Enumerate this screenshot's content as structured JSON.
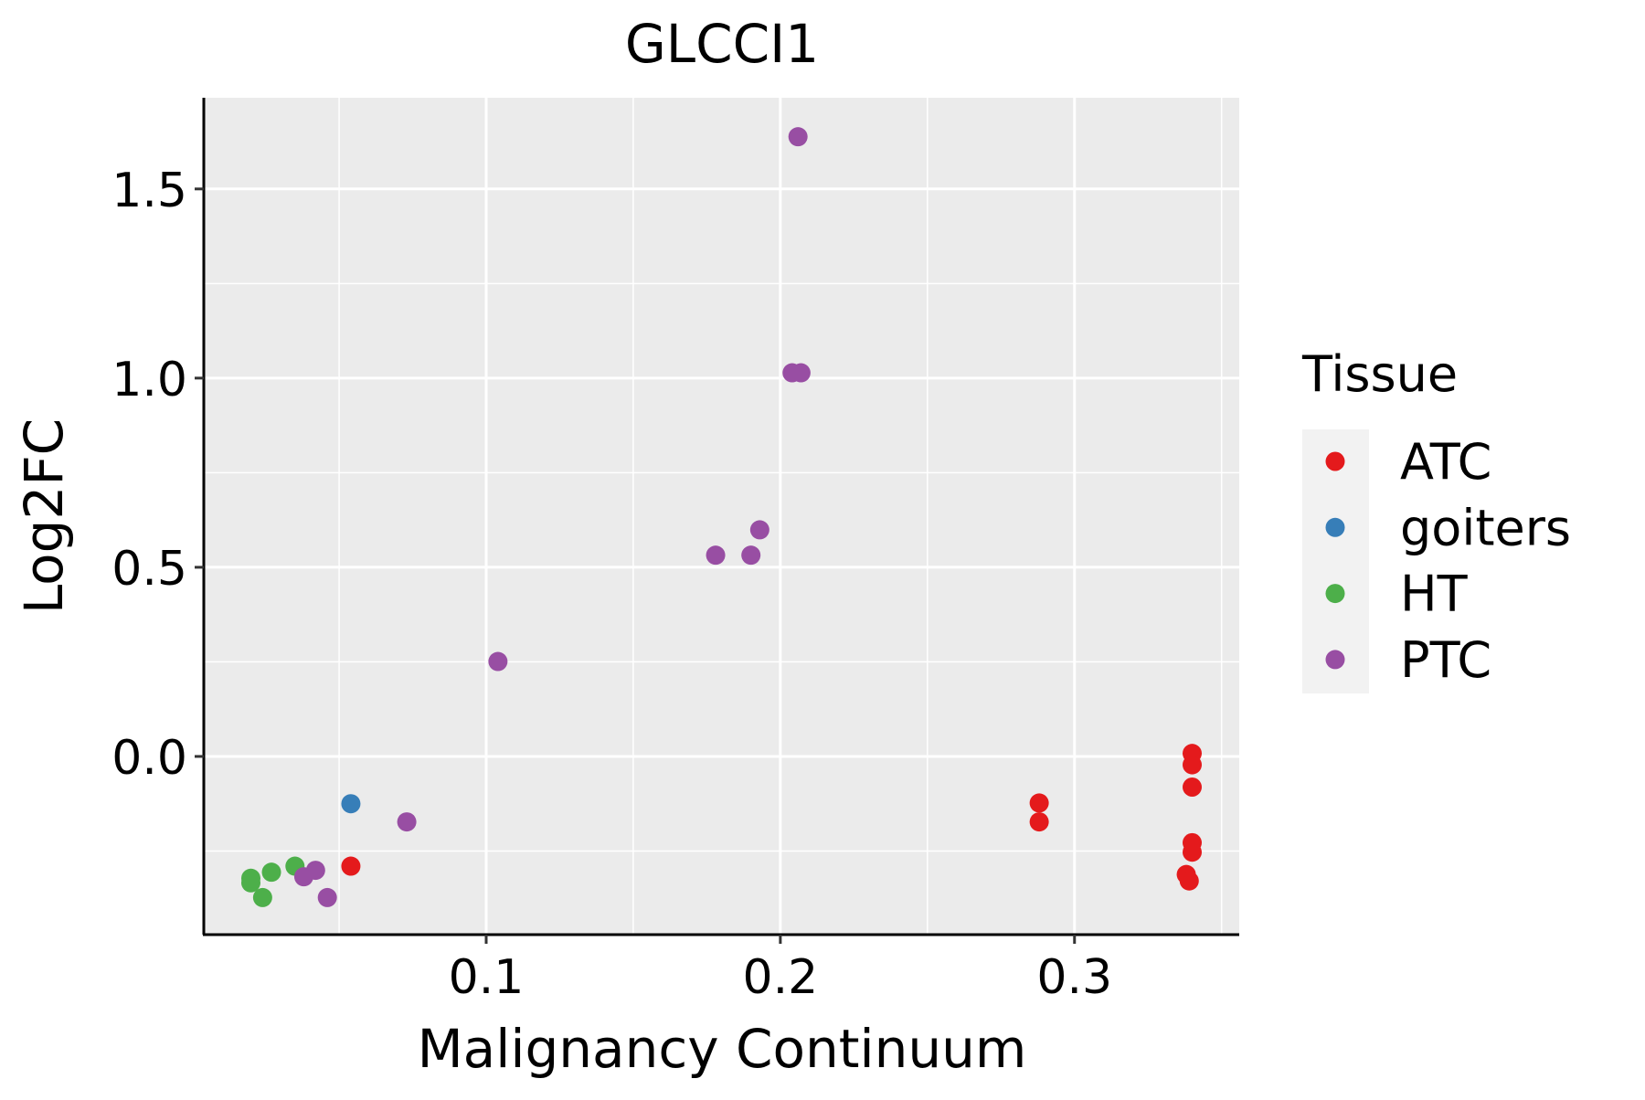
{
  "chart_data": {
    "type": "scatter",
    "title": "GLCCI1",
    "xlabel": "Malignancy Continuum",
    "ylabel": "Log2FC",
    "xlim": [
      0.004,
      0.356
    ],
    "ylim": [
      -0.471,
      1.741
    ],
    "x_ticks": [
      0.1,
      0.2,
      0.3
    ],
    "x_tick_labels": [
      "0.1",
      "0.2",
      "0.3"
    ],
    "x_minor": [
      0.05,
      0.15,
      0.25,
      0.35
    ],
    "y_ticks": [
      0.0,
      0.5,
      1.0,
      1.5
    ],
    "y_tick_labels": [
      "0.0",
      "0.5",
      "1.0",
      "1.5"
    ],
    "y_minor": [
      -0.25,
      0.25,
      0.75,
      1.25
    ],
    "grid": true,
    "legend": {
      "title": "Tissue",
      "placement": "right"
    },
    "series": [
      {
        "name": "ATC",
        "color": "#E41A1C",
        "points": [
          [
            0.054,
            -0.29
          ],
          [
            0.288,
            -0.123
          ],
          [
            0.288,
            -0.173
          ],
          [
            0.34,
            0.008
          ],
          [
            0.34,
            -0.022
          ],
          [
            0.34,
            -0.081
          ],
          [
            0.34,
            -0.228
          ],
          [
            0.34,
            -0.253
          ],
          [
            0.338,
            -0.312
          ],
          [
            0.339,
            -0.329
          ]
        ]
      },
      {
        "name": "goiters",
        "color": "#377EB8",
        "points": [
          [
            0.054,
            -0.125
          ]
        ]
      },
      {
        "name": "HT",
        "color": "#4DAF4A",
        "points": [
          [
            0.02,
            -0.334
          ],
          [
            0.02,
            -0.322
          ],
          [
            0.024,
            -0.373
          ],
          [
            0.027,
            -0.306
          ],
          [
            0.035,
            -0.29
          ]
        ]
      },
      {
        "name": "PTC",
        "color": "#984EA3",
        "points": [
          [
            0.206,
            1.638
          ],
          [
            0.204,
            1.014
          ],
          [
            0.207,
            1.014
          ],
          [
            0.193,
            0.599
          ],
          [
            0.178,
            0.532
          ],
          [
            0.19,
            0.532
          ],
          [
            0.104,
            0.251
          ],
          [
            0.073,
            -0.173
          ],
          [
            0.042,
            -0.301
          ],
          [
            0.038,
            -0.318
          ],
          [
            0.046,
            -0.373
          ]
        ]
      }
    ]
  }
}
